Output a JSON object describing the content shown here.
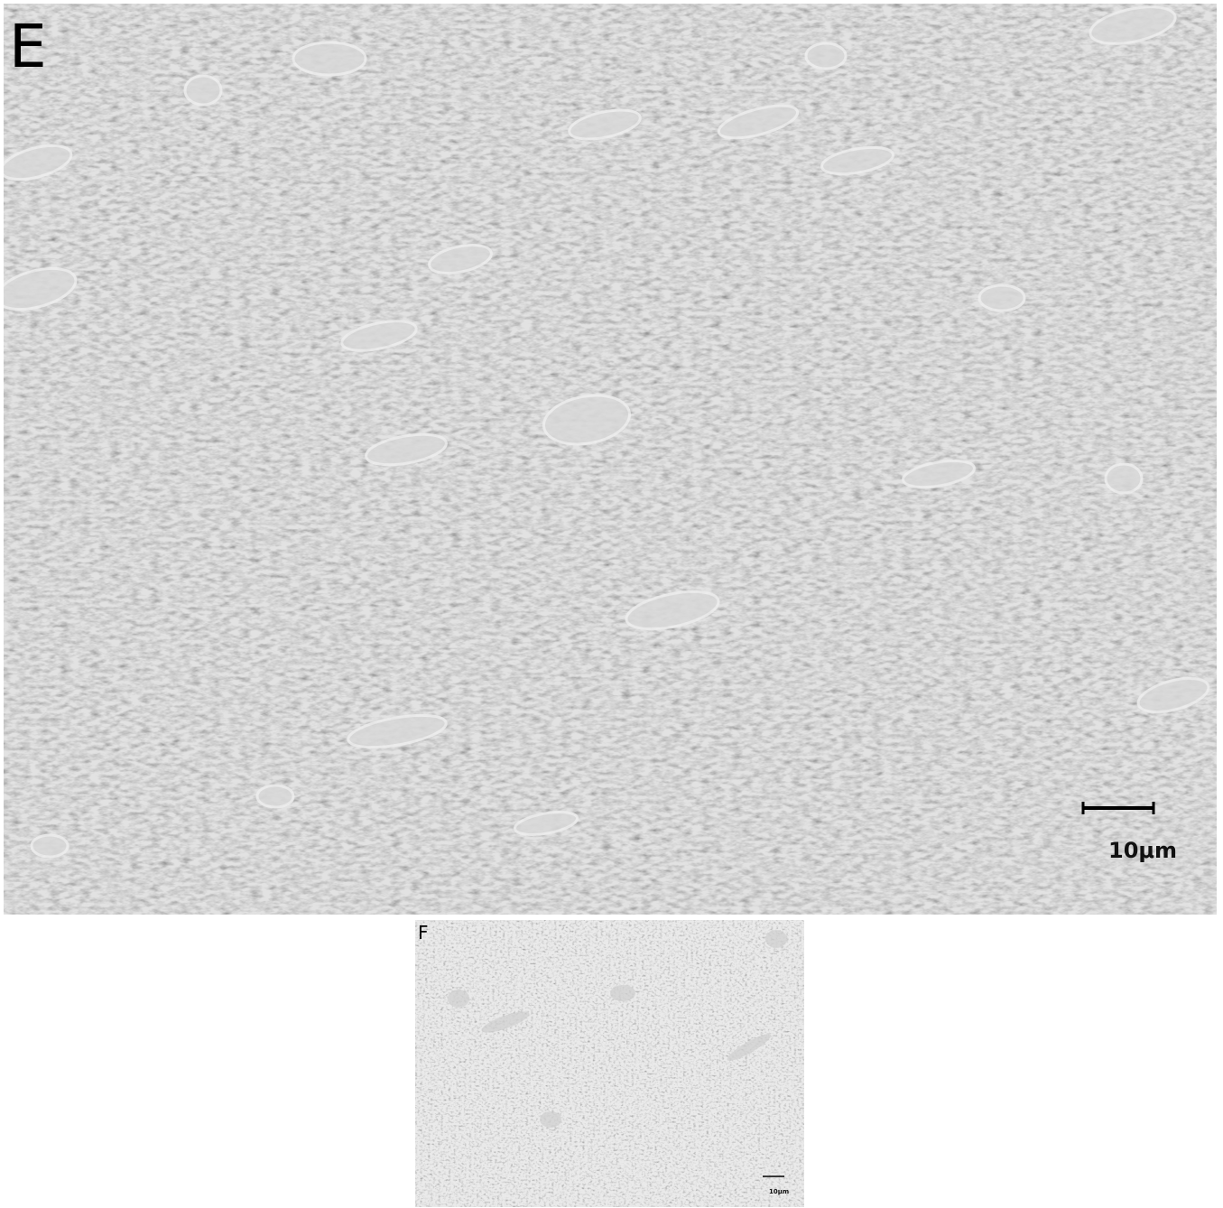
{
  "panels": [
    {
      "label": "E",
      "scale_label": "10μm"
    },
    {
      "label": "F",
      "scale_label": "10μm"
    }
  ]
}
